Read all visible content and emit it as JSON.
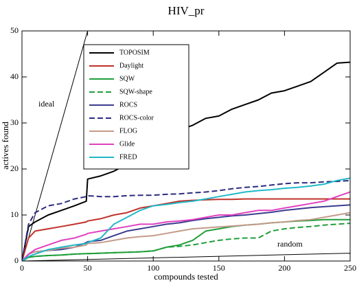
{
  "chart_data": {
    "type": "line",
    "title": "HIV_pr",
    "x_label": "compounds tested",
    "y_label": "actives found",
    "xlim": [
      0,
      250
    ],
    "ylim": [
      0,
      50
    ],
    "xticks": [
      0,
      50,
      100,
      150,
      200,
      250
    ],
    "yticks": [
      0,
      10,
      20,
      30,
      40,
      50
    ],
    "legend": "upper left",
    "x": [
      0,
      5,
      10,
      20,
      30,
      40,
      49,
      50,
      60,
      70,
      80,
      90,
      100,
      110,
      120,
      130,
      140,
      150,
      160,
      170,
      180,
      190,
      200,
      210,
      220,
      230,
      240,
      250
    ],
    "series": [
      {
        "name": "TOPOSIM",
        "color": "#000000",
        "style": "solid",
        "values": [
          0,
          7.5,
          8.5,
          10,
          11,
          12,
          13,
          17.8,
          18.5,
          19.5,
          21,
          24,
          26,
          27,
          28.5,
          29.5,
          31,
          31.5,
          33,
          34,
          35,
          36.5,
          37,
          38,
          39,
          41,
          43,
          43.2
        ]
      },
      {
        "name": "Daylight",
        "color": "#c0302a",
        "style": "solid",
        "values": [
          0,
          5,
          6.5,
          7,
          7.5,
          8,
          8.5,
          8.7,
          9.2,
          10,
          10.5,
          11.5,
          12,
          12.5,
          13,
          13.2,
          13.3,
          13.4,
          13.4,
          13.5,
          13.5,
          13.5,
          13.5,
          13.5,
          13.5,
          13.5,
          13.5,
          13.5
        ]
      },
      {
        "name": "SQW",
        "color": "#1f9e3a",
        "style": "solid",
        "values": [
          0,
          0.8,
          1,
          1.2,
          1.3,
          1.5,
          1.6,
          1.6,
          1.7,
          1.8,
          1.9,
          2,
          2.2,
          3,
          3.5,
          4.5,
          6.5,
          7,
          7.5,
          7.8,
          8,
          8.3,
          8.5,
          8.7,
          8.8,
          9,
          9,
          9
        ]
      },
      {
        "name": "SQW-shape",
        "color": "#1f9e3a",
        "style": "dashed",
        "values": [
          0,
          0.8,
          1,
          1.2,
          1.3,
          1.5,
          1.6,
          1.6,
          1.7,
          1.8,
          1.9,
          2,
          2.2,
          3,
          3.2,
          3.5,
          4,
          4.5,
          4.8,
          5,
          5,
          6.5,
          7,
          7.3,
          7.5,
          7.8,
          8,
          8.2
        ]
      },
      {
        "name": "ROCS",
        "color": "#3b3b8f",
        "style": "solid",
        "values": [
          0,
          1.5,
          2,
          2.3,
          2.5,
          3,
          4,
          4.2,
          4.5,
          5.5,
          6.5,
          7,
          7.5,
          8,
          8.3,
          8.8,
          9.2,
          9.5,
          9.8,
          10,
          10.3,
          10.6,
          11,
          11.3,
          11.6,
          11.8,
          12,
          12.2
        ]
      },
      {
        "name": "ROCS-color",
        "color": "#2b2b80",
        "style": "dashed",
        "values": [
          0,
          8,
          10.5,
          12,
          12.5,
          13.5,
          14,
          14.2,
          14,
          14,
          14.2,
          14.3,
          14.3,
          14.5,
          14.6,
          14.8,
          15,
          15.3,
          15.7,
          16,
          16.2,
          16.5,
          16.8,
          17,
          17,
          17.2,
          17.3,
          17.5
        ]
      },
      {
        "name": "FLOG",
        "color": "#c49a8a",
        "style": "solid",
        "values": [
          0,
          1.5,
          2,
          2.3,
          2.8,
          3,
          3.5,
          3.8,
          4,
          4.5,
          5,
          5.3,
          5.5,
          6,
          6.5,
          7,
          7.2,
          7.4,
          7.6,
          7.8,
          8,
          8.3,
          8.5,
          8.8,
          9,
          9.5,
          10,
          10.5
        ]
      },
      {
        "name": "Glide",
        "color": "#e040c0",
        "style": "solid",
        "values": [
          0,
          1.5,
          2.5,
          3.5,
          4.5,
          5,
          5.8,
          6,
          6.5,
          7,
          7.5,
          8,
          8,
          8.5,
          8.7,
          9,
          9.5,
          10,
          10,
          10.5,
          11,
          11,
          11.5,
          12,
          12.5,
          13,
          14,
          15
        ]
      },
      {
        "name": "FRED",
        "color": "#20b8c8",
        "style": "solid",
        "values": [
          0,
          1,
          1.5,
          2.5,
          3,
          3.5,
          3.8,
          4,
          5,
          8,
          9.5,
          11,
          12,
          12.3,
          12.7,
          13,
          13.5,
          14,
          14.5,
          15,
          15.3,
          15.5,
          15.8,
          16,
          16.3,
          16.7,
          17.5,
          18
        ]
      }
    ],
    "reference_lines": [
      {
        "label": "ideal",
        "color": "#000000",
        "x": [
          0,
          50
        ],
        "values": [
          0,
          50
        ]
      },
      {
        "label": "random",
        "color": "#000000",
        "x": [
          0,
          250
        ],
        "values": [
          0,
          1.7
        ]
      }
    ]
  }
}
